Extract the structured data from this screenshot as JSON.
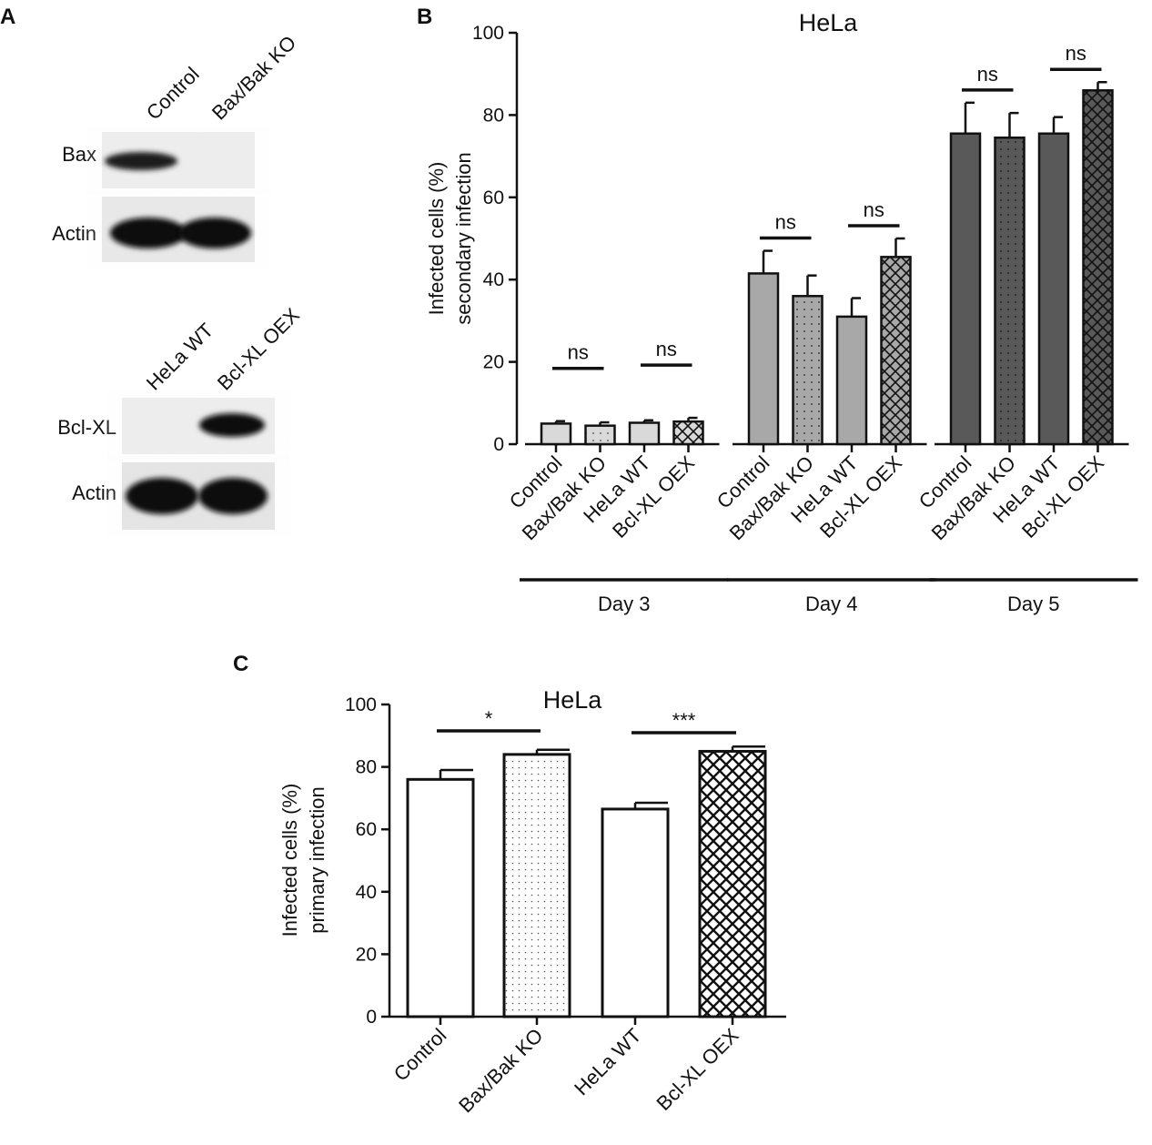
{
  "panels": {
    "a": {
      "letter": "A",
      "blot1": {
        "lanes": [
          "Control",
          "Bax/Bak KO"
        ],
        "rows": [
          "Bax",
          "Actin"
        ]
      },
      "blot2": {
        "lanes": [
          "HeLa WT",
          "Bcl-XL OEX"
        ],
        "rows": [
          "Bcl-XL",
          "Actin"
        ]
      }
    },
    "b": {
      "letter": "B"
    },
    "c": {
      "letter": "C"
    }
  },
  "chart_data": [
    {
      "id": "B",
      "type": "bar",
      "title": "HeLa",
      "ylabel_line1": "Infected cells (%)",
      "ylabel_line2": "secondary infection",
      "ylim": [
        0,
        100
      ],
      "yticks": [
        0,
        20,
        40,
        60,
        80,
        100
      ],
      "categories": [
        "Control",
        "Bax/Bak KO",
        "HeLa WT",
        "Bcl-XL OEX"
      ],
      "groups": [
        {
          "label": "Day 3",
          "fill": "#d9d9d9",
          "values": [
            5,
            4.5,
            5.2,
            5.5
          ],
          "errors": [
            0.6,
            0.8,
            0.6,
            0.9
          ],
          "significance": [
            "ns",
            "ns"
          ]
        },
        {
          "label": "Day 4",
          "fill": "#a8a8a8",
          "values": [
            41.5,
            36,
            31,
            45.5
          ],
          "errors": [
            5.5,
            5,
            4.5,
            4.5
          ],
          "significance": [
            "ns",
            "ns"
          ]
        },
        {
          "label": "Day 5",
          "fill": "#595959",
          "values": [
            75.5,
            74.5,
            75.5,
            86
          ],
          "errors": [
            7.5,
            6,
            4,
            2
          ],
          "significance": [
            "ns",
            "ns"
          ]
        }
      ],
      "patterns": [
        "solid",
        "dots",
        "solid",
        "crosshatch"
      ]
    },
    {
      "id": "C",
      "type": "bar",
      "title": "HeLa",
      "ylabel_line1": "Infected cells (%)",
      "ylabel_line2": "primary infection",
      "ylim": [
        0,
        100
      ],
      "yticks": [
        0,
        20,
        40,
        60,
        80,
        100
      ],
      "categories": [
        "Control",
        "Bax/Bak KO",
        "HeLa WT",
        "Bcl-XL OEX"
      ],
      "values": [
        76,
        84,
        66.5,
        85
      ],
      "errors": [
        3,
        1.5,
        2,
        1.5
      ],
      "patterns": [
        "white",
        "dots",
        "white",
        "crosshatch"
      ],
      "significance": [
        "*",
        "***"
      ]
    }
  ]
}
